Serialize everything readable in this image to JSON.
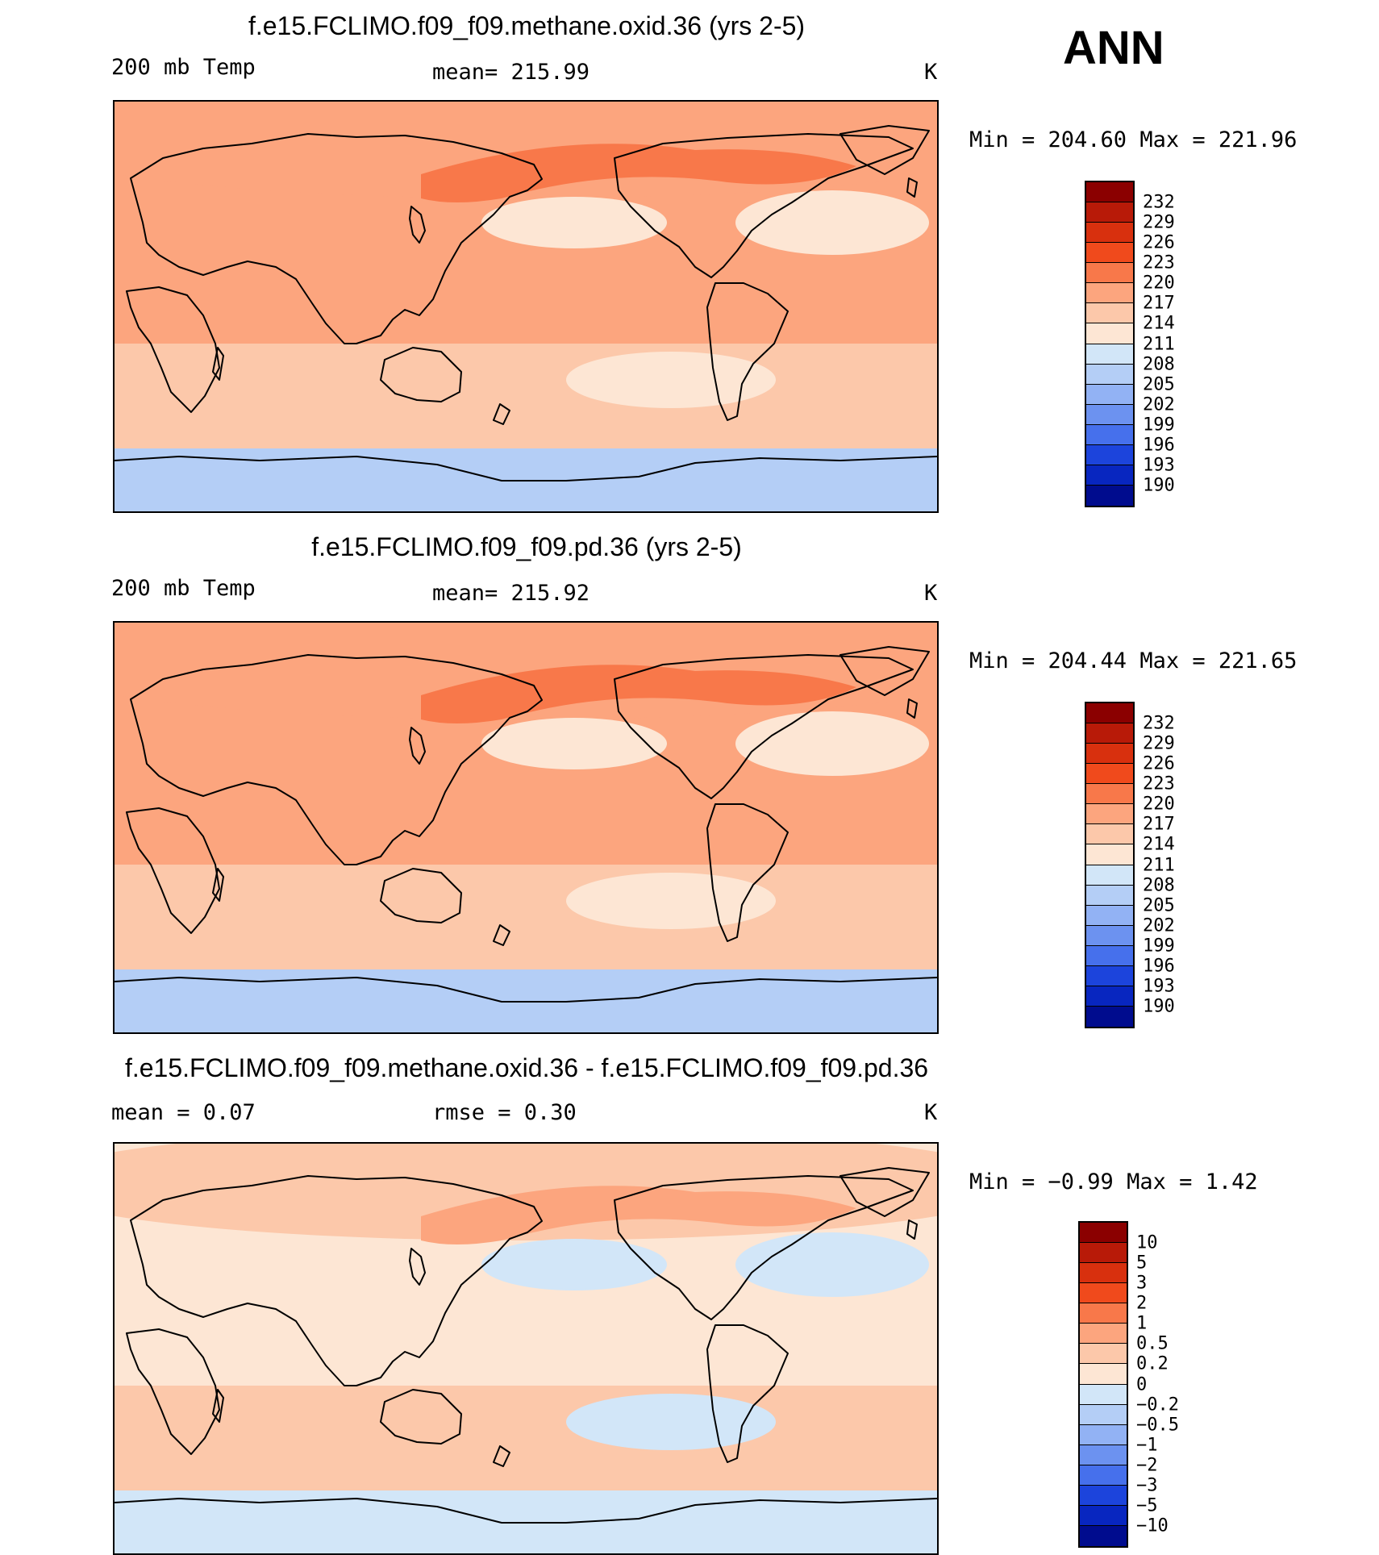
{
  "season": "ANN",
  "units": "K",
  "panels": [
    {
      "title": "f.e15.FCLIMO.f09_f09.methane.oxid.36 (yrs 2-5)",
      "variable": "200 mb Temp",
      "stat_text": "mean=  215.99",
      "units": "K",
      "minmax_text": "Min  =  204.60  Max  =  221.96",
      "colorbar": {
        "labels": [
          "232",
          "229",
          "226",
          "223",
          "220",
          "217",
          "214",
          "211",
          "208",
          "205",
          "202",
          "199",
          "196",
          "193",
          "190"
        ],
        "colors": [
          "#8b0000",
          "#b81a08",
          "#d8300e",
          "#f04a1c",
          "#f8784a",
          "#fca57e",
          "#fcc8aa",
          "#fde6d4",
          "#d2e6f8",
          "#b4cef6",
          "#92b2f4",
          "#6c92f0",
          "#4670ec",
          "#1c44dc",
          "#0826c0",
          "#000c8e"
        ]
      },
      "field": {
        "Arctic": "#fca57e",
        "NAtl": "#f8784a",
        "NPac": "#fde6d4",
        "Tropics": "#fca57e",
        "SH": "#fcc8aa",
        "Antarctic": "#b4cef6"
      }
    },
    {
      "title": "f.e15.FCLIMO.f09_f09.pd.36 (yrs 2-5)",
      "variable": "200 mb Temp",
      "stat_text": "mean=  215.92",
      "units": "K",
      "minmax_text": "Min  =  204.44  Max  =  221.65",
      "colorbar": {
        "labels": [
          "232",
          "229",
          "226",
          "223",
          "220",
          "217",
          "214",
          "211",
          "208",
          "205",
          "202",
          "199",
          "196",
          "193",
          "190"
        ],
        "colors": [
          "#8b0000",
          "#b81a08",
          "#d8300e",
          "#f04a1c",
          "#f8784a",
          "#fca57e",
          "#fcc8aa",
          "#fde6d4",
          "#d2e6f8",
          "#b4cef6",
          "#92b2f4",
          "#6c92f0",
          "#4670ec",
          "#1c44dc",
          "#0826c0",
          "#000c8e"
        ]
      },
      "field": {
        "Arctic": "#fca57e",
        "NAtl": "#f8784a",
        "NPac": "#fde6d4",
        "Tropics": "#fca57e",
        "SH": "#fcc8aa",
        "Antarctic": "#b4cef6"
      }
    },
    {
      "title": "f.e15.FCLIMO.f09_f09.methane.oxid.36 - f.e15.FCLIMO.f09_f09.pd.36",
      "variable": "mean  =     0.07",
      "stat_text": "rmse  =     0.30",
      "units": "K",
      "minmax_text": "Min  =    −0.99  Max  =     1.42",
      "colorbar": {
        "labels": [
          "10",
          "5",
          "3",
          "2",
          "1",
          "0.5",
          "0.2",
          "0",
          "−0.2",
          "−0.5",
          "−1",
          "−2",
          "−3",
          "−5",
          "−10"
        ],
        "colors": [
          "#8b0000",
          "#b81a08",
          "#d8300e",
          "#f04a1c",
          "#f8784a",
          "#fca57e",
          "#fcc8aa",
          "#fde6d4",
          "#d2e6f8",
          "#b4cef6",
          "#92b2f4",
          "#6c92f0",
          "#4670ec",
          "#1c44dc",
          "#0826c0",
          "#000c8e"
        ]
      },
      "field": {
        "Arctic": "#fcc8aa",
        "NAtl": "#fca57e",
        "NPac": "#d2e6f8",
        "Tropics": "#fde6d4",
        "SH": "#fcc8aa",
        "Antarctic": "#d2e6f8"
      }
    }
  ]
}
